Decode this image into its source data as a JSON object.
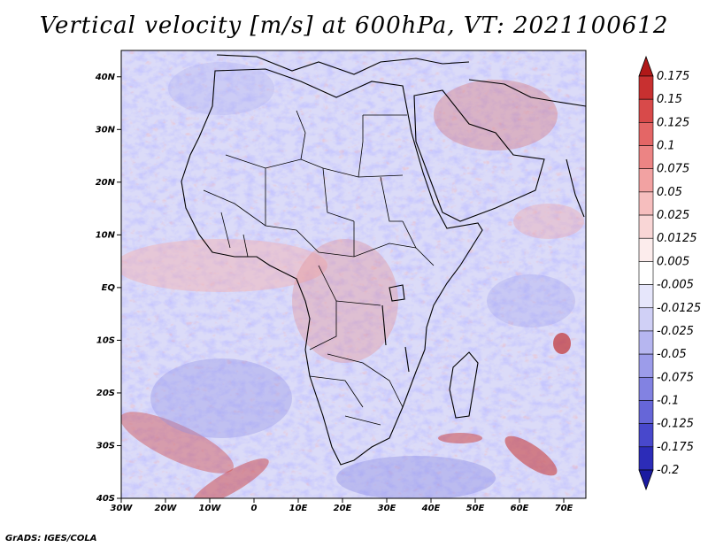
{
  "title": "Vertical velocity [m/s] at 600hPa, VT: 2021100612",
  "credit": "GrADS: IGES/COLA",
  "map": {
    "lon_range": [
      -30,
      75
    ],
    "lat_range": [
      -40,
      45
    ],
    "x_ticks": [
      "30W",
      "20W",
      "10W",
      "0",
      "10E",
      "20E",
      "30E",
      "40E",
      "50E",
      "60E",
      "70E"
    ],
    "y_ticks": [
      "40N",
      "30N",
      "20N",
      "10N",
      "EQ",
      "10S",
      "20S",
      "30S",
      "40S"
    ]
  },
  "colorbar": {
    "levels": [
      "0.175",
      "0.15",
      "0.125",
      "0.1",
      "0.075",
      "0.05",
      "0.025",
      "0.0125",
      "0.005",
      "-0.005",
      "-0.0125",
      "-0.025",
      "-0.05",
      "-0.075",
      "-0.1",
      "-0.125",
      "-0.175",
      "-0.2"
    ],
    "colors": [
      "#b01818",
      "#c83030",
      "#d84a4a",
      "#e46666",
      "#ec8484",
      "#f2a2a2",
      "#f6bebe",
      "#f9d6d6",
      "#fcecec",
      "#ffffff",
      "#e6e6fb",
      "#d0d0f6",
      "#b6b6f0",
      "#9c9cea",
      "#8282e2",
      "#6666d8",
      "#4848cc",
      "#2c2cb8",
      "#1a1aa0"
    ]
  }
}
